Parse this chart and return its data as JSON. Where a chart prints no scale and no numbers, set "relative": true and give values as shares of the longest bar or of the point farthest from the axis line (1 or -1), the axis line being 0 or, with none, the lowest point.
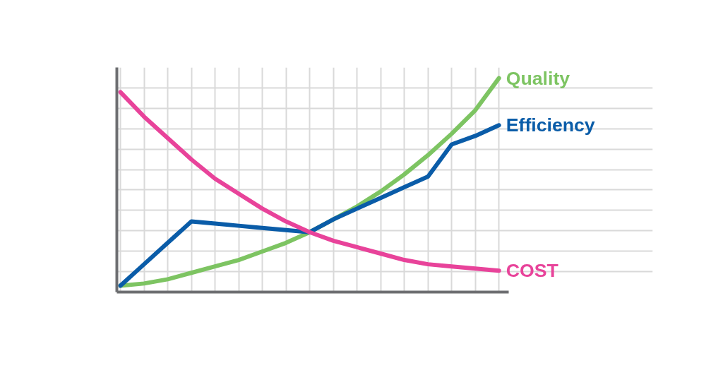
{
  "chart_data": {
    "type": "line",
    "relative": true,
    "grid": true,
    "legend": false,
    "marker": "none",
    "line_style": "solid",
    "categories": [
      null,
      null,
      null,
      null,
      null,
      null,
      null,
      null,
      null,
      null,
      null,
      null,
      null,
      null,
      null,
      null,
      null
    ],
    "series": [
      {
        "name": "Quality",
        "color": "#7dc462",
        "values": [
          0.03,
          0.04,
          0.06,
          0.09,
          0.12,
          0.15,
          0.19,
          0.23,
          0.28,
          0.34,
          0.4,
          0.47,
          0.55,
          0.64,
          0.74,
          0.85,
          1.0
        ]
      },
      {
        "name": "Efficiency",
        "color": "#0a5ca8",
        "values": [
          0.03,
          0.13,
          0.23,
          0.33,
          0.32,
          0.31,
          0.3,
          0.29,
          0.28,
          0.34,
          0.39,
          0.44,
          0.49,
          0.54,
          0.69,
          0.73,
          0.78
        ]
      },
      {
        "name": "COST",
        "color": "#e8439a",
        "values": [
          0.935,
          0.82,
          0.72,
          0.62,
          0.53,
          0.46,
          0.39,
          0.33,
          0.28,
          0.24,
          0.21,
          0.18,
          0.15,
          0.13,
          0.12,
          0.11,
          0.1
        ]
      }
    ]
  }
}
